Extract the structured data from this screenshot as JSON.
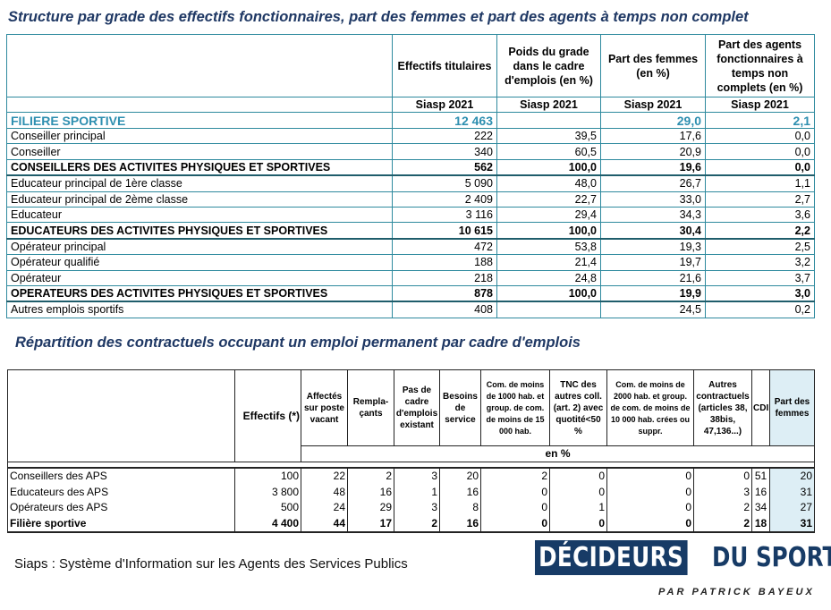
{
  "title1": "Structure par grade des effectifs fonctionnaires, part des femmes et part des agents à temps non complet",
  "t1": {
    "headers": [
      "Effectifs titulaires",
      "Poids du grade dans le cadre d'emplois (en %)",
      "Part des femmes (en %)",
      "Part des agents fonctionnaires à temps non complets (en %)"
    ],
    "source": "Siasp 2021",
    "rows": [
      {
        "label": "FILIERE SPORTIVE",
        "v": [
          "12 463",
          "",
          "29,0",
          "2,1"
        ],
        "type": "fil"
      },
      {
        "label": "Conseiller principal",
        "v": [
          "222",
          "39,5",
          "17,6",
          "0,0"
        ]
      },
      {
        "label": "Conseiller",
        "v": [
          "340",
          "60,5",
          "20,9",
          "0,0"
        ]
      },
      {
        "label": "CONSEILLERS DES ACTIVITES PHYSIQUES ET SPORTIVES",
        "v": [
          "562",
          "100,0",
          "19,6",
          "0,0"
        ],
        "type": "bold"
      },
      {
        "label": "Educateur principal de 1ère classe",
        "v": [
          "5 090",
          "48,0",
          "26,7",
          "1,1"
        ]
      },
      {
        "label": "Educateur principal de 2ème classe",
        "v": [
          "2 409",
          "22,7",
          "33,0",
          "2,7"
        ]
      },
      {
        "label": "Educateur",
        "v": [
          "3 116",
          "29,4",
          "34,3",
          "3,6"
        ]
      },
      {
        "label": "EDUCATEURS DES ACTIVITES PHYSIQUES ET SPORTIVES",
        "v": [
          "10 615",
          "100,0",
          "30,4",
          "2,2"
        ],
        "type": "bold"
      },
      {
        "label": "Opérateur principal",
        "v": [
          "472",
          "53,8",
          "19,3",
          "2,5"
        ]
      },
      {
        "label": "Opérateur qualifié",
        "v": [
          "188",
          "21,4",
          "19,7",
          "3,2"
        ]
      },
      {
        "label": "Opérateur",
        "v": [
          "218",
          "24,8",
          "21,6",
          "3,7"
        ]
      },
      {
        "label": "OPERATEURS DES ACTIVITES PHYSIQUES ET SPORTIVES",
        "v": [
          "878",
          "100,0",
          "19,9",
          "3,0"
        ],
        "type": "bold"
      },
      {
        "label": "Autres emplois sportifs",
        "v": [
          "408",
          "",
          "24,5",
          "0,2"
        ]
      }
    ]
  },
  "title2": "Répartition des contractuels occupant un emploi permanent par cadre d'emplois",
  "t2": {
    "headers": [
      "Effectifs (*)",
      "Affectés sur poste vacant",
      "Rempla-çants",
      "Pas de cadre d'emplois existant",
      "Besoins de service",
      "Com. de moins de 1000 hab. et group. de com. de moins de 15 000 hab.",
      "TNC des autres coll. (art. 2) avec quotité<50 %",
      "Com. de moins de 2000 hab. et group. de com. de moins de 10 000 hab. crées ou suppr.",
      "Autres contractuels (articles 38, 38bis, 47,136...)",
      "CDI",
      "Part des femmes"
    ],
    "unit": "en %",
    "rows": [
      {
        "label": "Conseillers des APS",
        "v": [
          "100",
          "22",
          "2",
          "3",
          "20",
          "2",
          "0",
          "0",
          "0",
          "51",
          "20"
        ]
      },
      {
        "label": "Educateurs des APS",
        "v": [
          "3 800",
          "48",
          "16",
          "1",
          "16",
          "0",
          "0",
          "0",
          "3",
          "16",
          "31"
        ]
      },
      {
        "label": "Opérateurs des APS",
        "v": [
          "500",
          "24",
          "29",
          "3",
          "8",
          "0",
          "1",
          "0",
          "2",
          "34",
          "27"
        ]
      },
      {
        "label": "Filière sportive",
        "v": [
          "4 400",
          "44",
          "17",
          "2",
          "16",
          "0",
          "0",
          "0",
          "2",
          "18",
          "31"
        ],
        "type": "bold"
      }
    ]
  },
  "footer": "Siaps : Système d'Information sur les Agents des Services Publics",
  "logo": {
    "part1": "DÉCIDEURS",
    "part2": "DU SPORT",
    "byline": "PAR PATRICK BAYEUX"
  },
  "colors": {
    "title": "#1f3864",
    "accent": "#2e8fb0",
    "logo": "#173b66",
    "highlight": "#ddeef5"
  }
}
